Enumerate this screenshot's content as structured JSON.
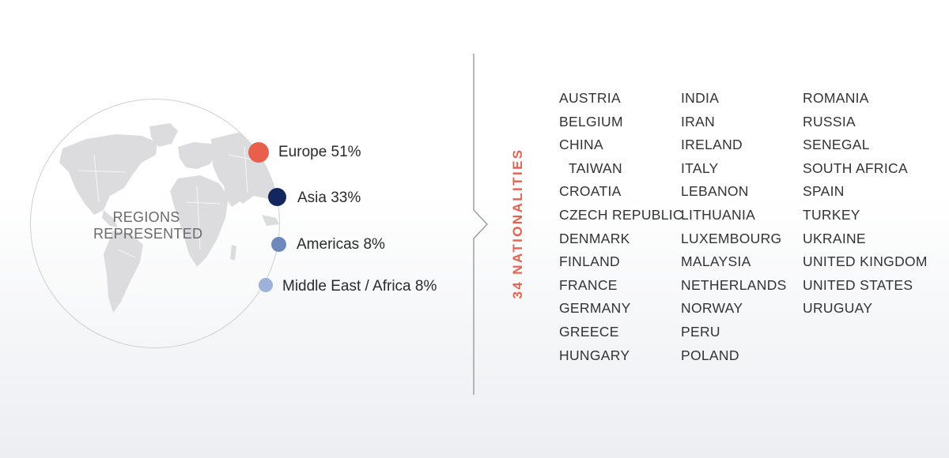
{
  "regions": {
    "label_line1": "REGIONS",
    "label_line2": "REPRESENTED",
    "items": [
      {
        "label": "Europe 51%",
        "value": 51,
        "color": "#e8604c"
      },
      {
        "label": "Asia 33%",
        "value": 33,
        "color": "#13275e"
      },
      {
        "label": "Americas 8%",
        "value": 8,
        "color": "#6f88bc"
      },
      {
        "label": "Middle East / Africa 8%",
        "value": 8,
        "color": "#9db2da"
      }
    ]
  },
  "nationalities": {
    "title": "34 NATIONALITIES",
    "accent_color": "#e8614f",
    "columns": [
      [
        "AUSTRIA",
        "BELGIUM",
        "CHINA",
        "TAIWAN",
        "CROATIA",
        "CZECH REPUBLIC",
        "DENMARK",
        "FINLAND",
        "FRANCE",
        "GERMANY",
        "GREECE",
        "HUNGARY"
      ],
      [
        "INDIA",
        "IRAN",
        "IRELAND",
        "ITALY",
        "LEBANON",
        "LITHUANIA",
        "LUXEMBOURG",
        "MALAYSIA",
        "NETHERLANDS",
        "NORWAY",
        "PERU",
        "POLAND"
      ],
      [
        "ROMANIA",
        "RUSSIA",
        "SENEGAL",
        "SOUTH AFRICA",
        "SPAIN",
        "TURKEY",
        "UKRAINE",
        "UNITED KINGDOM",
        "UNITED STATES",
        "URUGUAY"
      ]
    ]
  }
}
